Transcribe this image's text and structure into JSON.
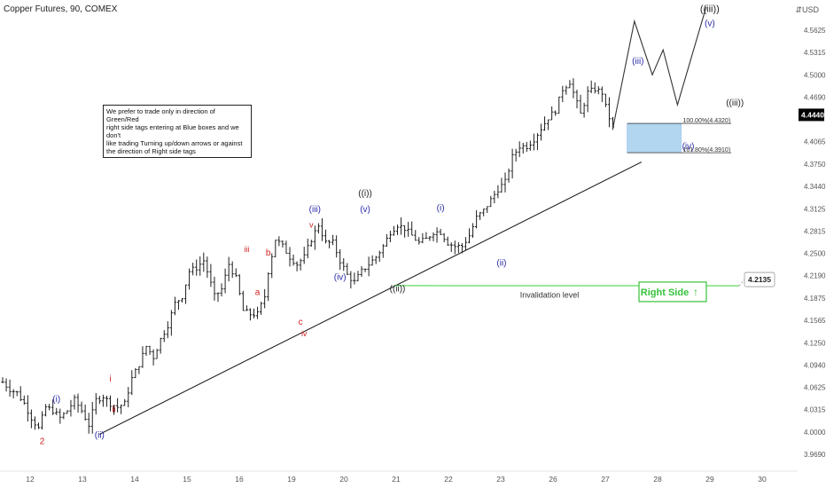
{
  "chart_data": {
    "type": "ohlc",
    "title": "Copper Futures, 90, COMEX",
    "currency": "USD",
    "y_ticks": [
      "4.5625",
      "4.5315",
      "4.5000",
      "4.4690",
      "4.4065",
      "4.3750",
      "4.3440",
      "4.3125",
      "4.2815",
      "4.2500",
      "4.2190",
      "4.1875",
      "4.1565",
      "4.1250",
      "4.0940",
      "4.0625",
      "4.0315",
      "4.0000",
      "3.9690"
    ],
    "x_ticks": [
      "12",
      "13",
      "14",
      "15",
      "16",
      "19",
      "20",
      "21",
      "22",
      "23",
      "26",
      "27",
      "28",
      "29",
      "30"
    ],
    "last_price": "4.4440",
    "last_price_color": "#000000",
    "invalidation_price": "4.2135",
    "price_path": [
      [
        0,
        4.07
      ],
      [
        2,
        4.06
      ],
      [
        4,
        4.055
      ],
      [
        6,
        4.04
      ],
      [
        8,
        4.02
      ],
      [
        10,
        4.005
      ],
      [
        12,
        4.035
      ],
      [
        14,
        4.03
      ],
      [
        16,
        4.02
      ],
      [
        18,
        4.03
      ],
      [
        20,
        4.045
      ],
      [
        22,
        4.03
      ],
      [
        24,
        4.01
      ],
      [
        26,
        4.045
      ],
      [
        28,
        4.05
      ],
      [
        30,
        4.04
      ],
      [
        32,
        4.035
      ],
      [
        34,
        4.04
      ],
      [
        36,
        4.075
      ],
      [
        38,
        4.095
      ],
      [
        40,
        4.12
      ],
      [
        42,
        4.105
      ],
      [
        44,
        4.13
      ],
      [
        46,
        4.15
      ],
      [
        48,
        4.18
      ],
      [
        50,
        4.19
      ],
      [
        52,
        4.225
      ],
      [
        54,
        4.23
      ],
      [
        56,
        4.24
      ],
      [
        57,
        4.225
      ],
      [
        59,
        4.19
      ],
      [
        61,
        4.2
      ],
      [
        63,
        4.235
      ],
      [
        65,
        4.215
      ],
      [
        67,
        4.17
      ],
      [
        69,
        4.165
      ],
      [
        71,
        4.165
      ],
      [
        73,
        4.19
      ],
      [
        74,
        4.225
      ],
      [
        76,
        4.27
      ],
      [
        78,
        4.26
      ],
      [
        80,
        4.245
      ],
      [
        82,
        4.235
      ],
      [
        84,
        4.245
      ],
      [
        86,
        4.27
      ],
      [
        88,
        4.29
      ],
      [
        90,
        4.265
      ],
      [
        92,
        4.265
      ],
      [
        94,
        4.24
      ],
      [
        96,
        4.22
      ],
      [
        98,
        4.21
      ],
      [
        100,
        4.225
      ],
      [
        102,
        4.235
      ],
      [
        104,
        4.245
      ],
      [
        106,
        4.26
      ],
      [
        108,
        4.28
      ],
      [
        110,
        4.29
      ],
      [
        112,
        4.285
      ],
      [
        114,
        4.275
      ],
      [
        116,
        4.265
      ],
      [
        118,
        4.27
      ],
      [
        120,
        4.28
      ],
      [
        122,
        4.28
      ],
      [
        124,
        4.265
      ],
      [
        126,
        4.26
      ],
      [
        128,
        4.26
      ],
      [
        130,
        4.275
      ],
      [
        132,
        4.3
      ],
      [
        134,
        4.31
      ],
      [
        136,
        4.325
      ],
      [
        138,
        4.34
      ],
      [
        140,
        4.35
      ],
      [
        142,
        4.385
      ],
      [
        144,
        4.4
      ],
      [
        146,
        4.4
      ],
      [
        148,
        4.41
      ],
      [
        150,
        4.425
      ],
      [
        152,
        4.44
      ],
      [
        154,
        4.45
      ],
      [
        156,
        4.48
      ],
      [
        158,
        4.49
      ],
      [
        159,
        4.475
      ],
      [
        161,
        4.445
      ],
      [
        163,
        4.475
      ],
      [
        165,
        4.48
      ],
      [
        167,
        4.475
      ],
      [
        168,
        4.455
      ],
      [
        170,
        4.425
      ]
    ],
    "projection": [
      [
        170,
        4.425
      ],
      [
        176,
        4.575
      ],
      [
        181,
        4.5
      ],
      [
        184,
        4.535
      ],
      [
        188,
        4.458
      ],
      [
        196,
        4.595
      ]
    ],
    "trendline": [
      [
        27,
        3.997
      ],
      [
        178,
        4.378
      ]
    ],
    "wave_labels": [
      {
        "text": "(i)",
        "x": 15,
        "y": 4.042,
        "color": "#2a2aa8",
        "size": 10
      },
      {
        "text": "2",
        "x": 11,
        "y": 3.983,
        "color": "#d32020",
        "size": 10
      },
      {
        "text": "(ii)",
        "x": 27,
        "y": 3.992,
        "color": "#2a2aa8",
        "size": 10
      },
      {
        "text": "i",
        "x": 30,
        "y": 4.071,
        "color": "#d32020",
        "size": 10
      },
      {
        "text": "ii",
        "x": 31,
        "y": 4.028,
        "color": "#d32020",
        "size": 10
      },
      {
        "text": "iii",
        "x": 68,
        "y": 4.252,
        "color": "#d32020",
        "size": 9
      },
      {
        "text": "a",
        "x": 71,
        "y": 4.192,
        "color": "#d32020",
        "size": 10
      },
      {
        "text": "b",
        "x": 74,
        "y": 4.247,
        "color": "#d32020",
        "size": 10
      },
      {
        "text": "c",
        "x": 83,
        "y": 4.15,
        "color": "#d32020",
        "size": 10
      },
      {
        "text": "iv",
        "x": 84,
        "y": 4.134,
        "color": "#d32020",
        "size": 9
      },
      {
        "text": "(iii)",
        "x": 87,
        "y": 4.308,
        "color": "#2a2aa8",
        "size": 10
      },
      {
        "text": "v",
        "x": 86,
        "y": 4.286,
        "color": "#d32020",
        "size": 9
      },
      {
        "text": "(iv)",
        "x": 94,
        "y": 4.213,
        "color": "#2a2aa8",
        "size": 10
      },
      {
        "text": "((i))",
        "x": 101,
        "y": 4.33,
        "color": "#222222",
        "size": 10
      },
      {
        "text": "(v)",
        "x": 101,
        "y": 4.308,
        "color": "#2a2aa8",
        "size": 10
      },
      {
        "text": "((ii))",
        "x": 110,
        "y": 4.197,
        "color": "#222222",
        "size": 10
      },
      {
        "text": "(i)",
        "x": 122,
        "y": 4.31,
        "color": "#2a2aa8",
        "size": 10
      },
      {
        "text": "(ii)",
        "x": 139,
        "y": 4.233,
        "color": "#2a2aa8",
        "size": 10
      },
      {
        "text": "(iii)",
        "x": 177,
        "y": 4.515,
        "color": "#2a2aa8",
        "size": 10
      },
      {
        "text": "(iv)",
        "x": 191,
        "y": 4.396,
        "color": "#2a2aa8",
        "size": 10
      },
      {
        "text": "((iii))",
        "x": 197,
        "y": 4.588,
        "color": "#222222",
        "size": 11
      },
      {
        "text": "(v)",
        "x": 197,
        "y": 4.568,
        "color": "#2a2aa8",
        "size": 10
      },
      {
        "text": "((iii))",
        "x": 204,
        "y": 4.457,
        "color": "#222222",
        "size": 10
      }
    ],
    "extension_labels": [
      {
        "text": "100.00%(4.4320)",
        "value": 4.432
      },
      {
        "text": "161.80%(4.3910)",
        "value": 4.391
      }
    ],
    "invalidation_label": "Invalidation level",
    "right_side_label": "Right Side",
    "right_side_arrow": "↑"
  },
  "note": {
    "lines": [
      "We prefer to trade only in direction of Green/Red",
      "right side tags entering at Blue boxes and we don't",
      "like trading Turning up/down arrows or against",
      "the direction of Right side tags"
    ]
  },
  "colors": {
    "bars": "#1e1e1e",
    "trendline": "#111111",
    "projection": "#333333",
    "blue_box": "#a6cfee",
    "blue_box_border": "#6aa8da",
    "invalidation": "#39d23c",
    "right_side": "#35c23a"
  }
}
